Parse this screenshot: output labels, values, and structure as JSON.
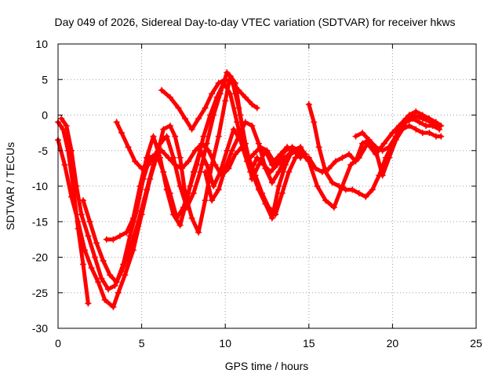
{
  "chart_data": {
    "type": "scatter",
    "title": "Day 049 of 2026, Sidereal Day-to-day VTEC variation (SDTVAR) for receiver hkws",
    "xlabel": "GPS time / hours",
    "ylabel": "SDTVAR / TECUs",
    "xlim": [
      0,
      25
    ],
    "ylim": [
      -30,
      10
    ],
    "xticks": [
      0,
      5,
      10,
      15,
      20,
      25
    ],
    "yticks": [
      10,
      5,
      0,
      -5,
      -10,
      -15,
      -20,
      -25,
      -30
    ],
    "grid": true,
    "marker": "+",
    "color": "#ff0000",
    "series": [
      {
        "points": [
          [
            0.0,
            -1.0
          ],
          [
            0.3,
            -2.0
          ],
          [
            0.6,
            -5.0
          ],
          [
            0.9,
            -10.0
          ],
          [
            1.2,
            -16.0
          ],
          [
            1.5,
            -21.0
          ],
          [
            1.8,
            -26.5
          ]
        ]
      },
      {
        "points": [
          [
            0.0,
            -3.5
          ],
          [
            0.4,
            -7.0
          ],
          [
            0.8,
            -11.5
          ],
          [
            1.2,
            -15.0
          ],
          [
            1.6,
            -19.0
          ],
          [
            2.0,
            -21.5
          ],
          [
            2.4,
            -23.5
          ],
          [
            2.8,
            -26.0
          ],
          [
            3.3,
            -27.0
          ],
          [
            3.6,
            -25.0
          ],
          [
            4.0,
            -22.5
          ],
          [
            4.5,
            -19.0
          ],
          [
            5.0,
            -14.0
          ],
          [
            5.5,
            -9.0
          ],
          [
            6.0,
            -5.0
          ],
          [
            6.3,
            -2.0
          ],
          [
            6.7,
            -1.5
          ],
          [
            7.0,
            -3.0
          ],
          [
            7.3,
            -6.0
          ],
          [
            7.6,
            -11.0
          ],
          [
            8.0,
            -14.5
          ],
          [
            8.4,
            -16.5
          ],
          [
            8.8,
            -12.0
          ],
          [
            9.2,
            -7.0
          ],
          [
            9.6,
            -3.0
          ],
          [
            10.0,
            2.0
          ],
          [
            10.3,
            5.5
          ],
          [
            10.6,
            4.5
          ],
          [
            10.9,
            0.0
          ],
          [
            11.2,
            -4.0
          ],
          [
            11.6,
            -8.0
          ],
          [
            12.0,
            -10.5
          ],
          [
            12.4,
            -12.5
          ],
          [
            12.8,
            -14.5
          ],
          [
            13.2,
            -10.0
          ],
          [
            13.6,
            -7.0
          ],
          [
            14.0,
            -5.0
          ],
          [
            14.5,
            -4.5
          ],
          [
            15.0,
            -6.5
          ],
          [
            15.5,
            -10.0
          ],
          [
            16.0,
            -12.0
          ],
          [
            16.5,
            -13.0
          ],
          [
            17.0,
            -10.0
          ],
          [
            17.5,
            -7.0
          ],
          [
            18.0,
            -6.0
          ],
          [
            18.5,
            -4.0
          ],
          [
            19.0,
            -5.5
          ],
          [
            19.5,
            -4.0
          ],
          [
            20.0,
            -2.5
          ],
          [
            20.4,
            -1.5
          ],
          [
            20.8,
            -0.5
          ],
          [
            21.2,
            0.0
          ],
          [
            21.8,
            -0.5
          ],
          [
            22.3,
            -1.0
          ],
          [
            22.8,
            -1.5
          ]
        ]
      },
      {
        "points": [
          [
            0.2,
            -0.5
          ],
          [
            0.5,
            -1.5
          ],
          [
            0.8,
            -5.0
          ],
          [
            1.1,
            -10.0
          ],
          [
            1.4,
            -14.0
          ],
          [
            1.8,
            -17.0
          ],
          [
            2.2,
            -20.0
          ],
          [
            2.6,
            -23.0
          ],
          [
            3.0,
            -24.5
          ],
          [
            3.4,
            -24.0
          ],
          [
            3.8,
            -22.0
          ],
          [
            4.3,
            -19.0
          ],
          [
            4.8,
            -15.0
          ],
          [
            5.3,
            -10.5
          ],
          [
            5.7,
            -7.0
          ],
          [
            6.1,
            -4.0
          ],
          [
            6.5,
            -3.0
          ],
          [
            6.9,
            -6.0
          ],
          [
            7.3,
            -10.0
          ],
          [
            7.7,
            -13.0
          ],
          [
            8.1,
            -11.0
          ],
          [
            8.5,
            -8.0
          ],
          [
            8.9,
            -4.0
          ],
          [
            9.3,
            0.0
          ],
          [
            9.7,
            3.0
          ],
          [
            10.1,
            6.0
          ],
          [
            10.4,
            5.0
          ],
          [
            10.8,
            1.0
          ],
          [
            11.2,
            -4.0
          ],
          [
            11.6,
            -9.0
          ],
          [
            12.0,
            -7.0
          ],
          [
            12.4,
            -5.0
          ],
          [
            12.8,
            -7.0
          ],
          [
            13.2,
            -6.0
          ],
          [
            13.6,
            -5.0
          ],
          [
            14.0,
            -4.5
          ],
          [
            14.4,
            -5.0
          ],
          [
            14.8,
            -6.0
          ]
        ]
      },
      {
        "points": [
          [
            1.5,
            -12.0
          ],
          [
            1.9,
            -15.0
          ],
          [
            2.3,
            -18.0
          ],
          [
            2.7,
            -20.5
          ],
          [
            3.1,
            -22.5
          ],
          [
            3.5,
            -23.5
          ],
          [
            3.9,
            -21.0
          ],
          [
            4.3,
            -17.0
          ],
          [
            4.7,
            -13.5
          ],
          [
            5.1,
            -9.0
          ],
          [
            5.5,
            -6.0
          ],
          [
            5.9,
            -5.5
          ],
          [
            6.3,
            -8.0
          ],
          [
            6.7,
            -11.0
          ],
          [
            7.1,
            -14.5
          ],
          [
            7.5,
            -13.0
          ],
          [
            7.9,
            -10.0
          ],
          [
            8.3,
            -7.0
          ],
          [
            8.7,
            -3.0
          ],
          [
            9.1,
            0.0
          ],
          [
            9.5,
            2.5
          ],
          [
            9.9,
            4.5
          ],
          [
            10.3,
            3.0
          ],
          [
            10.7,
            -1.0
          ],
          [
            11.1,
            -5.0
          ],
          [
            11.5,
            -8.0
          ],
          [
            11.9,
            -6.0
          ],
          [
            12.3,
            -7.0
          ],
          [
            12.7,
            -8.0
          ],
          [
            13.1,
            -7.0
          ],
          [
            13.5,
            -6.0
          ],
          [
            13.9,
            -5.5
          ],
          [
            14.3,
            -5.0
          ],
          [
            14.7,
            -5.5
          ]
        ]
      },
      {
        "points": [
          [
            2.9,
            -17.5
          ],
          [
            3.3,
            -17.5
          ],
          [
            3.7,
            -17.0
          ],
          [
            4.1,
            -16.5
          ],
          [
            4.5,
            -14.5
          ],
          [
            4.9,
            -10.0
          ],
          [
            5.3,
            -6.0
          ],
          [
            5.7,
            -3.0
          ],
          [
            6.1,
            -6.0
          ],
          [
            6.5,
            -10.5
          ],
          [
            6.9,
            -14.0
          ],
          [
            7.3,
            -15.5
          ],
          [
            7.7,
            -12.0
          ],
          [
            8.1,
            -8.0
          ],
          [
            8.5,
            -5.0
          ],
          [
            8.9,
            -7.0
          ],
          [
            9.3,
            -10.0
          ],
          [
            9.7,
            -8.0
          ],
          [
            10.1,
            -5.0
          ],
          [
            10.5,
            -2.0
          ],
          [
            10.9,
            -3.5
          ],
          [
            11.3,
            -6.5
          ],
          [
            11.7,
            -5.5
          ],
          [
            12.1,
            -4.5
          ],
          [
            12.5,
            -5.0
          ],
          [
            12.9,
            -6.5
          ],
          [
            13.3,
            -5.5
          ],
          [
            13.7,
            -4.5
          ],
          [
            14.1,
            -5.0
          ],
          [
            14.5,
            -6.0
          ]
        ]
      },
      {
        "points": [
          [
            3.5,
            -1.0
          ],
          [
            3.8,
            -2.5
          ],
          [
            4.2,
            -4.5
          ],
          [
            4.6,
            -6.5
          ],
          [
            5.0,
            -7.5
          ],
          [
            5.4,
            -7.0
          ],
          [
            5.8,
            -5.5
          ],
          [
            6.2,
            -5.0
          ],
          [
            6.6,
            -6.0
          ],
          [
            7.0,
            -7.0
          ],
          [
            7.4,
            -7.5
          ],
          [
            7.8,
            -6.5
          ],
          [
            8.2,
            -5.0
          ],
          [
            8.6,
            -4.0
          ],
          [
            9.0,
            -5.0
          ],
          [
            9.4,
            -7.0
          ],
          [
            9.8,
            -8.5
          ],
          [
            10.2,
            -7.5
          ],
          [
            10.6,
            -5.5
          ],
          [
            11.0,
            -4.5
          ],
          [
            11.4,
            -6.0
          ],
          [
            11.8,
            -8.5
          ],
          [
            12.2,
            -11.0
          ],
          [
            12.6,
            -13.0
          ],
          [
            13.0,
            -14.0
          ],
          [
            13.4,
            -11.0
          ],
          [
            13.8,
            -8.0
          ],
          [
            14.2,
            -6.0
          ],
          [
            14.6,
            -5.5
          ]
        ]
      },
      {
        "points": [
          [
            6.2,
            3.5
          ],
          [
            6.7,
            2.5
          ],
          [
            7.2,
            1.0
          ],
          [
            7.6,
            -0.5
          ],
          [
            8.0,
            -2.0
          ],
          [
            8.4,
            -0.5
          ],
          [
            8.8,
            1.0
          ],
          [
            9.2,
            3.0
          ],
          [
            9.6,
            4.5
          ],
          [
            10.0,
            5.0
          ],
          [
            10.4,
            4.5
          ],
          [
            10.8,
            3.5
          ],
          [
            11.2,
            2.5
          ],
          [
            11.6,
            1.5
          ],
          [
            11.9,
            1.0
          ]
        ]
      },
      {
        "points": [
          [
            8.8,
            -8.0
          ],
          [
            9.2,
            -12.0
          ],
          [
            9.6,
            -10.5
          ],
          [
            10.0,
            -7.5
          ],
          [
            10.4,
            -5.0
          ],
          [
            10.8,
            -3.0
          ],
          [
            11.2,
            -1.0
          ],
          [
            11.6,
            -1.5
          ],
          [
            12.0,
            -4.0
          ],
          [
            12.4,
            -7.5
          ],
          [
            12.8,
            -9.5
          ],
          [
            13.2,
            -8.0
          ],
          [
            13.6,
            -6.0
          ],
          [
            14.0,
            -5.0
          ],
          [
            14.4,
            -5.0
          ],
          [
            14.8,
            -5.5
          ]
        ]
      },
      {
        "points": [
          [
            15.0,
            1.5
          ],
          [
            15.3,
            -1.0
          ],
          [
            15.6,
            -4.5
          ],
          [
            16.0,
            -8.0
          ],
          [
            16.4,
            -9.5
          ],
          [
            16.8,
            -10.0
          ],
          [
            17.2,
            -10.5
          ],
          [
            17.6,
            -10.5
          ],
          [
            18.0,
            -11.0
          ],
          [
            18.4,
            -11.5
          ],
          [
            18.8,
            -10.5
          ],
          [
            19.2,
            -8.5
          ],
          [
            19.6,
            -6.0
          ],
          [
            20.0,
            -4.0
          ],
          [
            20.4,
            -2.0
          ],
          [
            20.8,
            -1.0
          ],
          [
            21.2,
            -0.5
          ],
          [
            21.6,
            -1.0
          ],
          [
            22.0,
            -1.5
          ],
          [
            22.4,
            -1.5
          ],
          [
            22.8,
            -2.0
          ]
        ]
      },
      {
        "points": [
          [
            15.0,
            -6.0
          ],
          [
            15.4,
            -7.5
          ],
          [
            15.8,
            -8.0
          ],
          [
            16.2,
            -7.5
          ],
          [
            16.6,
            -6.5
          ],
          [
            17.0,
            -6.0
          ],
          [
            17.4,
            -5.5
          ],
          [
            17.8,
            -6.5
          ],
          [
            18.2,
            -4.0
          ],
          [
            18.6,
            -3.5
          ],
          [
            19.0,
            -4.5
          ],
          [
            19.4,
            -5.0
          ],
          [
            19.8,
            -4.5
          ],
          [
            20.2,
            -3.0
          ],
          [
            20.6,
            -1.5
          ],
          [
            21.0,
            0.0
          ],
          [
            21.4,
            0.5
          ],
          [
            21.8,
            0.0
          ],
          [
            22.2,
            -0.5
          ],
          [
            22.6,
            -1.0
          ],
          [
            22.9,
            -1.5
          ]
        ]
      },
      {
        "points": [
          [
            17.8,
            -3.0
          ],
          [
            18.2,
            -2.5
          ],
          [
            18.6,
            -3.5
          ],
          [
            19.0,
            -5.0
          ],
          [
            19.4,
            -8.5
          ],
          [
            19.8,
            -6.0
          ],
          [
            20.2,
            -3.5
          ],
          [
            20.6,
            -2.0
          ],
          [
            21.0,
            -1.5
          ],
          [
            21.4,
            -2.0
          ],
          [
            21.8,
            -2.5
          ],
          [
            22.2,
            -2.5
          ],
          [
            22.6,
            -3.0
          ],
          [
            22.9,
            -3.0
          ]
        ]
      }
    ]
  }
}
